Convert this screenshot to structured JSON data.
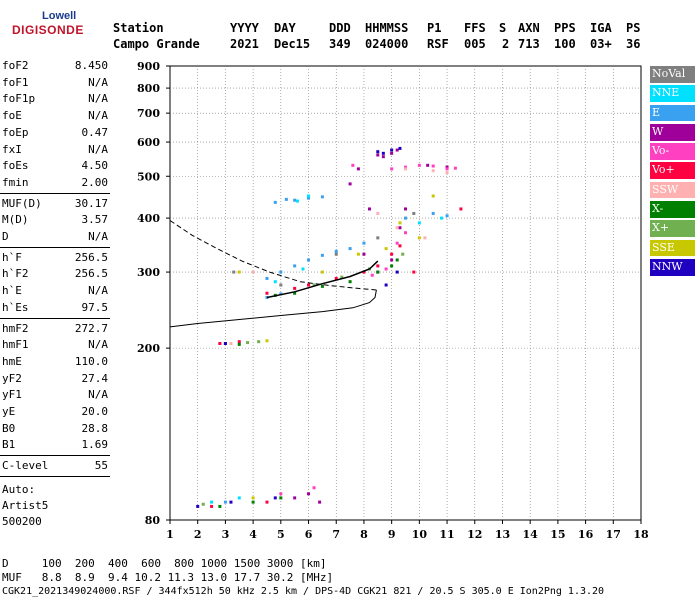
{
  "logo": {
    "top": "Lowell",
    "main": "DIGISONDE"
  },
  "header": {
    "labels": [
      "Station",
      "YYYY",
      "DAY",
      "DDD",
      "HHMMSS",
      "P1",
      "FFS",
      "S",
      "AXN",
      "PPS",
      "IGA",
      "PS"
    ],
    "values": [
      "Campo Grande",
      "2021",
      "Dec15",
      "349",
      "024000",
      "RSF",
      "005",
      "2",
      "713",
      "100",
      "03+",
      "36"
    ]
  },
  "params_group1": [
    {
      "name": "foF2",
      "value": "8.450"
    },
    {
      "name": "foF1",
      "value": "N/A"
    },
    {
      "name": "foF1p",
      "value": "N/A"
    },
    {
      "name": "foE",
      "value": "N/A"
    },
    {
      "name": "foEp",
      "value": "0.47"
    },
    {
      "name": "fxI",
      "value": "N/A"
    },
    {
      "name": "foEs",
      "value": "4.50"
    },
    {
      "name": "fmin",
      "value": "2.00"
    }
  ],
  "params_group2": [
    {
      "name": "MUF(D)",
      "value": "30.17"
    },
    {
      "name": "M(D)",
      "value": "3.57"
    },
    {
      "name": "D",
      "value": "N/A"
    }
  ],
  "params_group3": [
    {
      "name": "h`F",
      "value": "256.5"
    },
    {
      "name": "h`F2",
      "value": "256.5"
    },
    {
      "name": "h`E",
      "value": "N/A"
    },
    {
      "name": "h`Es",
      "value": "97.5"
    }
  ],
  "params_group4": [
    {
      "name": "hmF2",
      "value": "272.7"
    },
    {
      "name": "hmF1",
      "value": "N/A"
    },
    {
      "name": "hmE",
      "value": "110.0"
    },
    {
      "name": "yF2",
      "value": "27.4"
    },
    {
      "name": "yF1",
      "value": "N/A"
    },
    {
      "name": "yE",
      "value": "20.0"
    },
    {
      "name": "B0",
      "value": "28.8"
    },
    {
      "name": "B1",
      "value": "1.69"
    }
  ],
  "params_group5": [
    {
      "name": "C-level",
      "value": "55"
    }
  ],
  "auto_text": [
    "Auto:",
    "Artist5",
    "500200"
  ],
  "legend": [
    {
      "label": "NoVal",
      "color": "#7f7f7f"
    },
    {
      "label": "NNE",
      "color": "#00e1ff"
    },
    {
      "label": "E",
      "color": "#3aa0f0"
    },
    {
      "label": "W",
      "color": "#a0009a"
    },
    {
      "label": "Vo-",
      "color": "#ff40c0"
    },
    {
      "label": "Vo+",
      "color": "#ff0040"
    },
    {
      "label": "SSW",
      "color": "#ffb0b0"
    },
    {
      "label": "X-",
      "color": "#008000"
    },
    {
      "label": "X+",
      "color": "#70b050"
    },
    {
      "label": "SSE",
      "color": "#c8c800"
    },
    {
      "label": "NNW",
      "color": "#2000c0"
    }
  ],
  "bottom": {
    "line1": "D     100  200  400  600  800 1000 1500 3000 [km]",
    "line2": "MUF   8.8  8.9  9.4 10.2 11.3 13.0 17.7 30.2 [MHz]",
    "line3": "CGK21_2021349024000.RSF / 344fx512h 50 kHz 2.5 km / DPS-4D CGK21 821 / 20.5 S 305.0 E Ion2Png 1.3.20"
  },
  "chart_data": {
    "type": "scatter",
    "xlim": [
      1,
      18
    ],
    "ylim": [
      80,
      900
    ],
    "x_ticks": [
      1,
      2,
      3,
      4,
      5,
      6,
      7,
      8,
      9,
      10,
      11,
      12,
      13,
      14,
      15,
      16,
      17,
      18
    ],
    "y_ticks": [
      80,
      200,
      300,
      400,
      500,
      600,
      700,
      800,
      900
    ],
    "grid": true,
    "y_scale": "log",
    "series": [
      {
        "legend": "E",
        "color": "#3aa0f0",
        "points": [
          [
            5.5,
            440
          ],
          [
            6.0,
            445
          ],
          [
            6.5,
            448
          ],
          [
            4.8,
            435
          ],
          [
            5.2,
            442
          ],
          [
            4.5,
            290
          ],
          [
            5.0,
            300
          ],
          [
            6.0,
            320
          ],
          [
            7.0,
            335
          ],
          [
            7.5,
            340
          ],
          [
            8.0,
            350
          ],
          [
            5.5,
            310
          ],
          [
            6.5,
            328
          ],
          [
            9.5,
            400
          ],
          [
            10.5,
            410
          ],
          [
            11.0,
            405
          ],
          [
            5.0,
            267
          ],
          [
            4.5,
            262
          ],
          [
            3.0,
            88
          ]
        ]
      },
      {
        "legend": "NNE",
        "color": "#00e1ff",
        "points": [
          [
            6.0,
            450
          ],
          [
            5.6,
            438
          ],
          [
            10.0,
            390
          ],
          [
            10.8,
            400
          ],
          [
            5.8,
            305
          ],
          [
            4.8,
            285
          ],
          [
            2.5,
            88
          ],
          [
            3.5,
            90
          ]
        ]
      },
      {
        "legend": "W",
        "color": "#a0009a",
        "points": [
          [
            7.8,
            520
          ],
          [
            8.5,
            560
          ],
          [
            9.0,
            565
          ],
          [
            9.2,
            575
          ],
          [
            8.7,
            555
          ],
          [
            8.0,
            330
          ],
          [
            8.5,
            300
          ],
          [
            9.0,
            320
          ],
          [
            9.5,
            420
          ],
          [
            10.3,
            530
          ],
          [
            11.0,
            525
          ],
          [
            7.5,
            480
          ],
          [
            8.2,
            420
          ],
          [
            9.3,
            380
          ],
          [
            5.5,
            90
          ],
          [
            6.0,
            92
          ],
          [
            6.4,
            88
          ]
        ]
      },
      {
        "legend": "Vo-",
        "color": "#ff40c0",
        "points": [
          [
            9.0,
            520
          ],
          [
            9.5,
            525
          ],
          [
            10.0,
            530
          ],
          [
            10.5,
            528
          ],
          [
            11.0,
            520
          ],
          [
            11.3,
            522
          ],
          [
            8.3,
            295
          ],
          [
            8.8,
            305
          ],
          [
            9.2,
            350
          ],
          [
            9.5,
            370
          ],
          [
            7.6,
            530
          ],
          [
            5.0,
            92
          ],
          [
            6.2,
            95
          ]
        ]
      },
      {
        "legend": "Vo+",
        "color": "#ff0040",
        "points": [
          [
            6.0,
            280
          ],
          [
            7.0,
            290
          ],
          [
            8.0,
            300
          ],
          [
            8.5,
            310
          ],
          [
            9.0,
            330
          ],
          [
            9.3,
            345
          ],
          [
            5.5,
            275
          ],
          [
            4.5,
            268
          ],
          [
            2.8,
            205
          ],
          [
            3.5,
            207
          ],
          [
            2.5,
            86
          ],
          [
            4.5,
            88
          ],
          [
            11.5,
            420
          ],
          [
            9.8,
            300
          ]
        ]
      },
      {
        "legend": "SSW",
        "color": "#ffb0b0",
        "points": [
          [
            9.5,
            520
          ],
          [
            10.5,
            515
          ],
          [
            11.0,
            510
          ],
          [
            8.5,
            410
          ],
          [
            9.2,
            380
          ],
          [
            10.2,
            360
          ],
          [
            4.0,
            300
          ],
          [
            3.2,
            205
          ]
        ]
      },
      {
        "legend": "X-",
        "color": "#008000",
        "points": [
          [
            5.5,
            268
          ],
          [
            6.5,
            278
          ],
          [
            7.5,
            285
          ],
          [
            8.5,
            300
          ],
          [
            9.0,
            310
          ],
          [
            9.2,
            320
          ],
          [
            4.8,
            265
          ],
          [
            3.0,
            205
          ],
          [
            3.5,
            204
          ],
          [
            2.8,
            86
          ],
          [
            4.0,
            88
          ],
          [
            5.0,
            90
          ]
        ]
      },
      {
        "legend": "X+",
        "color": "#70b050",
        "points": [
          [
            6.2,
            280
          ],
          [
            7.2,
            292
          ],
          [
            8.2,
            305
          ],
          [
            9.4,
            330
          ],
          [
            3.8,
            206
          ],
          [
            4.2,
            207
          ],
          [
            2.2,
            87
          ]
        ]
      },
      {
        "legend": "SSE",
        "color": "#c8c800",
        "points": [
          [
            7.8,
            330
          ],
          [
            8.8,
            340
          ],
          [
            9.3,
            390
          ],
          [
            10.0,
            360
          ],
          [
            10.5,
            450
          ],
          [
            6.5,
            300
          ],
          [
            3.5,
            300
          ],
          [
            3.0,
            205
          ],
          [
            4.5,
            208
          ],
          [
            4.0,
            90
          ]
        ]
      },
      {
        "legend": "NNW",
        "color": "#2000c0",
        "points": [
          [
            8.5,
            570
          ],
          [
            9.0,
            575
          ],
          [
            9.3,
            580
          ],
          [
            8.7,
            565
          ],
          [
            2.0,
            86
          ],
          [
            3.2,
            88
          ],
          [
            4.8,
            90
          ],
          [
            3.0,
            205
          ],
          [
            8.8,
            280
          ],
          [
            9.2,
            300
          ]
        ]
      },
      {
        "legend": "NoVal",
        "color": "#7f7f7f",
        "points": [
          [
            5.0,
            280
          ],
          [
            7.0,
            330
          ],
          [
            8.5,
            360
          ],
          [
            3.3,
            300
          ],
          [
            9.8,
            410
          ]
        ]
      }
    ],
    "profile": [
      [
        8.45,
        272.7
      ],
      [
        8.4,
        262
      ],
      [
        8.2,
        255
      ],
      [
        7.6,
        248
      ],
      [
        6.5,
        243
      ],
      [
        5.0,
        238
      ],
      [
        3.5,
        233
      ],
      [
        2.0,
        228
      ],
      [
        1.0,
        224
      ]
    ],
    "topside": [
      [
        8.45,
        272.7
      ],
      [
        7.8,
        275
      ],
      [
        6.8,
        279
      ],
      [
        5.7,
        285
      ],
      [
        4.6,
        300
      ],
      [
        3.6,
        318
      ],
      [
        2.7,
        340
      ],
      [
        1.8,
        365
      ],
      [
        1.0,
        395
      ]
    ],
    "trace": [
      [
        4.5,
        262
      ],
      [
        5.5,
        270
      ],
      [
        6.5,
        282
      ],
      [
        7.5,
        293
      ],
      [
        8.2,
        305
      ],
      [
        8.5,
        318
      ]
    ]
  }
}
